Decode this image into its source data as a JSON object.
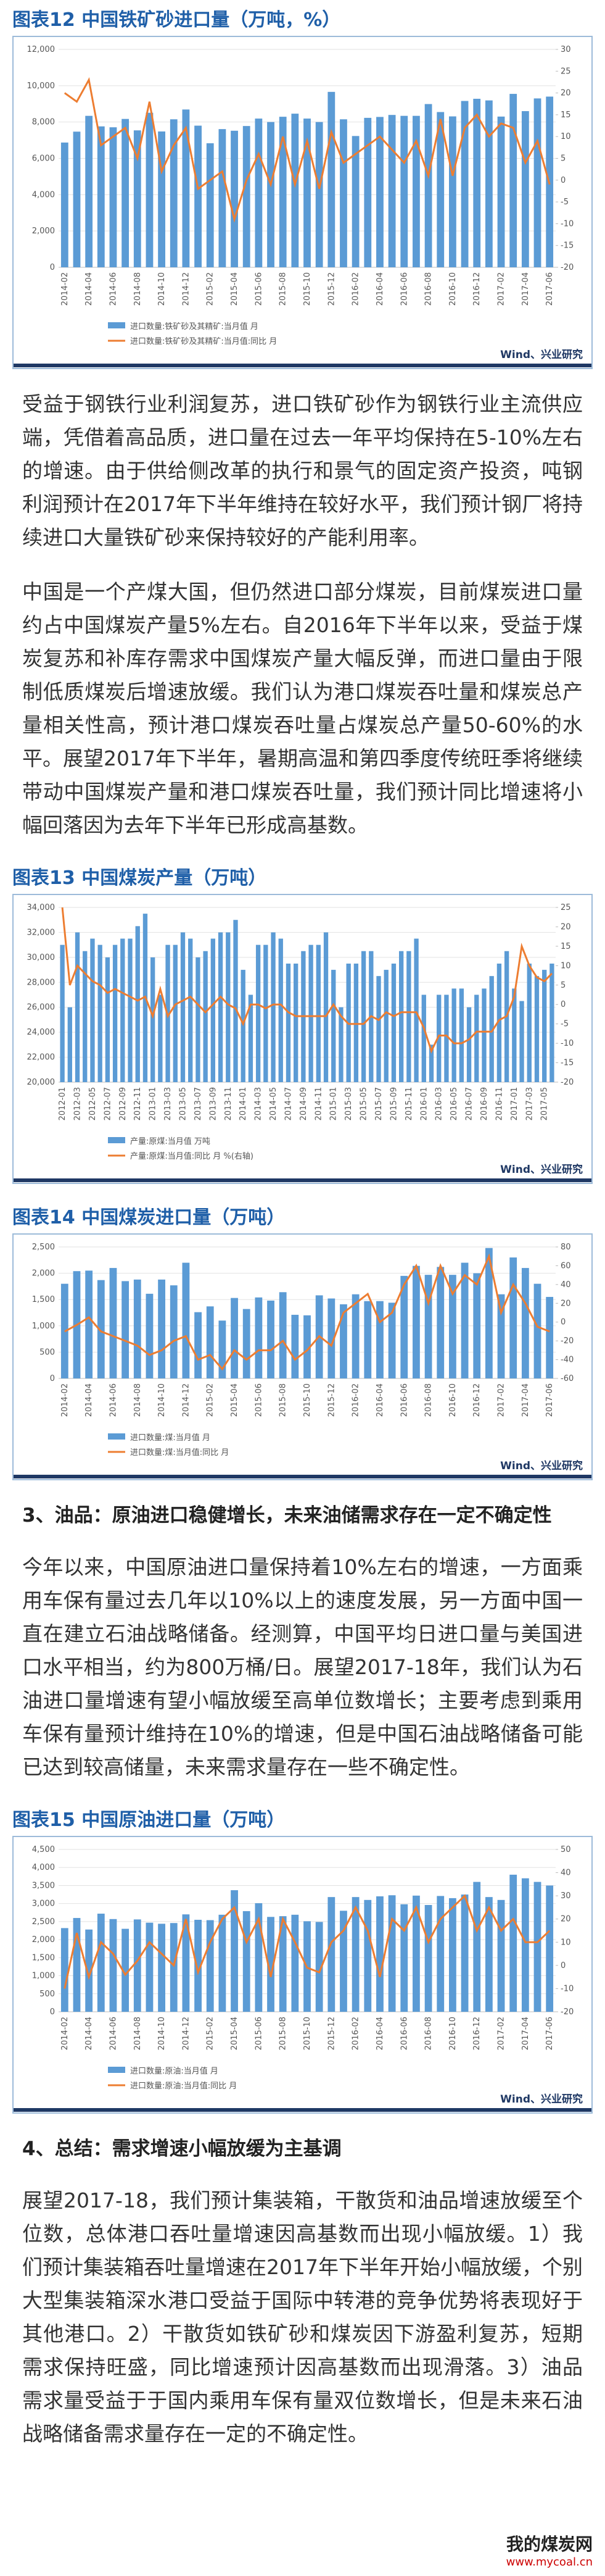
{
  "chart_data": [
    {
      "type": "bar",
      "title": "图表12  中国铁矿砂进口量（万吨，%）",
      "source": "Wind、兴业研究",
      "categories": [
        "2014-02",
        null,
        "2014-04",
        null,
        "2014-06",
        null,
        "2014-08",
        null,
        "2014-10",
        null,
        "2014-12",
        null,
        "2015-02",
        null,
        "2015-04",
        null,
        "2015-06",
        null,
        "2015-08",
        null,
        "2015-10",
        null,
        "2015-12",
        null,
        "2016-02",
        null,
        "2016-04",
        null,
        "2016-06",
        null,
        "2016-08",
        null,
        "2016-10",
        null,
        "2016-12",
        null,
        "2017-02",
        null,
        "2017-04",
        null,
        "2017-06"
      ],
      "series": [
        {
          "name": "进口数量:铁矿砂及其精矿:当月值 月",
          "type": "bar",
          "color": "#5b9bd5",
          "values": [
            6870,
            7470,
            8340,
            7760,
            7710,
            8170,
            7540,
            8510,
            7480,
            8150,
            8690,
            7800,
            6830,
            7610,
            7520,
            7780,
            8190,
            8000,
            8290,
            8460,
            8190,
            8000,
            9660,
            8150,
            7230,
            8230,
            8280,
            8390,
            8340,
            8340,
            8990,
            8550,
            8310,
            9160,
            9280,
            9190,
            8300,
            9550,
            8600,
            9300,
            9400
          ]
        },
        {
          "name": "进口数量:铁矿砂及其精矿:当月值:同比 月",
          "type": "line",
          "axis": "y2",
          "color": "#ed7d31",
          "values": [
            20,
            18,
            23,
            8,
            10,
            12,
            5,
            18,
            2,
            8,
            12,
            -2,
            0,
            2,
            -9,
            0,
            6,
            -1,
            10,
            -1,
            9,
            -2,
            11,
            4,
            6,
            8,
            10,
            7,
            4,
            9,
            1,
            14,
            1,
            12,
            15,
            10,
            13,
            12,
            4,
            9,
            -1
          ]
        }
      ],
      "ylim": [
        0,
        12000
      ],
      "yticks": [
        0,
        {
          "value": 2000,
          "label": "2,000"
        },
        {
          "value": 4000,
          "label": "4,000"
        },
        {
          "value": 6000,
          "label": "6,000"
        },
        {
          "value": 8000,
          "label": "8,000"
        },
        {
          "value": 10000,
          "label": "10,000"
        },
        {
          "value": 12000,
          "label": "12,000"
        }
      ],
      "y2lim": [
        -20,
        30
      ],
      "y2ticks": [
        -20,
        -15,
        -10,
        -5,
        0,
        5,
        10,
        15,
        20,
        25,
        30
      ]
    },
    {
      "type": "bar",
      "title": "图表13  中国煤炭产量（万吨）",
      "source": "Wind、兴业研究",
      "categories": [
        "2012-01",
        null,
        "2012-03",
        null,
        "2012-05",
        null,
        "2012-07",
        null,
        "2012-09",
        null,
        "2012-11",
        null,
        "2013-01",
        null,
        "2013-03",
        null,
        "2013-05",
        null,
        "2013-07",
        null,
        "2013-09",
        null,
        "2013-11",
        null,
        "2014-01",
        null,
        "2014-03",
        null,
        "2014-05",
        null,
        "2014-07",
        null,
        "2014-09",
        null,
        "2014-11",
        null,
        "2015-01",
        null,
        "2015-03",
        null,
        "2015-05",
        null,
        "2015-07",
        null,
        "2015-09",
        null,
        "2015-11",
        null,
        "2016-01",
        null,
        "2016-03",
        null,
        "2016-05",
        null,
        "2016-07",
        null,
        "2016-09",
        null,
        "2016-11",
        null,
        "2017-01",
        null,
        "2017-03",
        null,
        "2017-05",
        null
      ],
      "series": [
        {
          "name": "产量:原煤:当月值 万吨",
          "type": "bar",
          "color": "#5b9bd5",
          "values": [
            31000,
            26000,
            32000,
            30500,
            31500,
            31000,
            30000,
            31000,
            31500,
            31500,
            32500,
            33500,
            30000,
            27000,
            31000,
            31000,
            32000,
            31500,
            30000,
            30500,
            31500,
            32000,
            32000,
            33000,
            29000,
            27000,
            31000,
            31000,
            32000,
            31500,
            29500,
            29500,
            30500,
            31000,
            31000,
            32000,
            29000,
            26000,
            29500,
            29500,
            30500,
            30500,
            28500,
            29000,
            29500,
            30500,
            30500,
            31500,
            27000,
            23000,
            27000,
            27000,
            27500,
            27500,
            26000,
            27000,
            27500,
            28500,
            29500,
            30500,
            27500,
            26500,
            29500,
            28500,
            29000,
            29500
          ]
        },
        {
          "name": "产量:原煤:当月值:同比 月 %(右轴)",
          "type": "line",
          "axis": "y2",
          "color": "#ed7d31",
          "values": [
            25,
            5,
            10,
            8,
            6,
            5,
            3,
            4,
            3,
            2,
            1,
            2,
            -3,
            4,
            -3,
            0,
            1,
            2,
            0,
            -2,
            0,
            2,
            0,
            -1,
            -5,
            0,
            0,
            -1,
            0,
            0,
            -2,
            -3,
            -3,
            -3,
            -3,
            -3,
            0,
            -3,
            -5,
            -5,
            -5,
            -3,
            -4,
            -2,
            -3,
            -2,
            -2,
            -2,
            -6,
            -12,
            -8,
            -8,
            -10,
            -10,
            -9,
            -7,
            -7,
            -7,
            -4,
            -3,
            2,
            15,
            10,
            7,
            6,
            8
          ]
        }
      ],
      "ylim": [
        20000,
        34000
      ],
      "yticks": [
        {
          "value": 20000,
          "label": "20,000"
        },
        {
          "value": 22000,
          "label": "22,000"
        },
        {
          "value": 24000,
          "label": "24,000"
        },
        {
          "value": 26000,
          "label": "26,000"
        },
        {
          "value": 28000,
          "label": "28,000"
        },
        {
          "value": 30000,
          "label": "30,000"
        },
        {
          "value": 32000,
          "label": "32,000"
        },
        {
          "value": 34000,
          "label": "34,000"
        }
      ],
      "y2lim": [
        -20,
        25
      ],
      "y2ticks": [
        -20,
        -15,
        -10,
        -5,
        0,
        5,
        10,
        15,
        20,
        25
      ]
    },
    {
      "type": "bar",
      "title": "图表14  中国煤炭进口量（万吨）",
      "source": "Wind、兴业研究",
      "categories": [
        "2014-02",
        null,
        "2014-04",
        null,
        "2014-06",
        null,
        "2014-08",
        null,
        "2014-10",
        null,
        "2014-12",
        null,
        "2015-02",
        null,
        "2015-04",
        null,
        "2015-06",
        null,
        "2015-08",
        null,
        "2015-10",
        null,
        "2015-12",
        null,
        "2016-02",
        null,
        "2016-04",
        null,
        "2016-06",
        null,
        "2016-08",
        null,
        "2016-10",
        null,
        "2016-12",
        null,
        "2017-02",
        null,
        "2017-04",
        null,
        "2017-06"
      ],
      "series": [
        {
          "name": "进口数量:煤:当月值 月",
          "type": "bar",
          "color": "#5b9bd5",
          "values": [
            1800,
            2040,
            2050,
            1870,
            2100,
            1850,
            1880,
            1610,
            1880,
            1770,
            2200,
            1260,
            1370,
            1100,
            1530,
            1320,
            1540,
            1480,
            1640,
            1210,
            1200,
            1580,
            1520,
            1410,
            1600,
            1470,
            1470,
            1440,
            1950,
            2140,
            1970,
            2120,
            1970,
            2200,
            2000,
            2480,
            1600,
            2300,
            2100,
            1800,
            1550
          ]
        },
        {
          "name": "进口数量:煤:当月值:同比 月",
          "type": "line",
          "axis": "y2",
          "color": "#ed7d31",
          "values": [
            -10,
            -3,
            5,
            -10,
            -15,
            -20,
            -25,
            -35,
            -30,
            -20,
            -15,
            -40,
            -35,
            -50,
            -30,
            -40,
            -30,
            -30,
            -20,
            -40,
            -30,
            -15,
            -25,
            10,
            20,
            30,
            0,
            10,
            40,
            60,
            20,
            60,
            30,
            50,
            40,
            70,
            10,
            40,
            20,
            -5,
            -10
          ]
        }
      ],
      "ylim": [
        0,
        2500
      ],
      "yticks": [
        0,
        500,
        {
          "value": 1000,
          "label": "1,000"
        },
        {
          "value": 1500,
          "label": "1,500"
        },
        {
          "value": 2000,
          "label": "2,000"
        },
        {
          "value": 2500,
          "label": "2,500"
        }
      ],
      "y2lim": [
        -60,
        80
      ],
      "y2ticks": [
        -60,
        -40,
        -20,
        0,
        20,
        40,
        60,
        80
      ]
    },
    {
      "type": "bar",
      "title": "图表15  中国原油进口量（万吨）",
      "source": "Wind、兴业研究",
      "categories": [
        "2014-02",
        null,
        "2014-04",
        null,
        "2014-06",
        null,
        "2014-08",
        null,
        "2014-10",
        null,
        "2014-12",
        null,
        "2015-02",
        null,
        "2015-04",
        null,
        "2015-06",
        null,
        "2015-08",
        null,
        "2015-10",
        null,
        "2015-12",
        null,
        "2016-02",
        null,
        "2016-04",
        null,
        "2016-06",
        null,
        "2016-08",
        null,
        "2016-10",
        null,
        "2016-12",
        null,
        "2017-02",
        null,
        "2017-04",
        null,
        "2017-06"
      ],
      "series": [
        {
          "name": "进口数量:原油:当月值 月",
          "type": "bar",
          "color": "#5b9bd5",
          "values": [
            2320,
            2600,
            2280,
            2720,
            2570,
            2300,
            2560,
            2470,
            2440,
            2460,
            2700,
            2550,
            2540,
            2690,
            3370,
            2790,
            3010,
            2630,
            2650,
            2690,
            2510,
            2490,
            3180,
            2800,
            3180,
            3100,
            3200,
            3230,
            2980,
            3220,
            2960,
            3210,
            3150,
            3250,
            3600,
            3180,
            3100,
            3800,
            3700,
            3600,
            3500
          ]
        },
        {
          "name": "进口数量:原油:当月值:同比 月",
          "type": "line",
          "axis": "y2",
          "color": "#ed7d31",
          "values": [
            -10,
            14,
            -5,
            10,
            5,
            -4,
            2,
            10,
            5,
            0,
            20,
            -3,
            10,
            20,
            25,
            10,
            20,
            -5,
            20,
            10,
            -1,
            -3,
            10,
            15,
            25,
            15,
            -5,
            20,
            15,
            25,
            10,
            20,
            25,
            30,
            15,
            25,
            15,
            20,
            10,
            10,
            15
          ]
        }
      ],
      "ylim": [
        0,
        4500
      ],
      "yticks": [
        0,
        500,
        {
          "value": 1000,
          "label": "1,000"
        },
        {
          "value": 1500,
          "label": "1,500"
        },
        {
          "value": 2000,
          "label": "2,000"
        },
        {
          "value": 2500,
          "label": "2,500"
        },
        {
          "value": 3000,
          "label": "3,000"
        },
        {
          "value": 3500,
          "label": "3,500"
        },
        {
          "value": 4000,
          "label": "4,000"
        },
        {
          "value": 4500,
          "label": "4,500"
        }
      ],
      "y2lim": [
        -20,
        50
      ],
      "y2ticks": [
        -20,
        -10,
        0,
        10,
        20,
        30,
        40,
        50
      ]
    }
  ],
  "paragraphs": [
    "受益于钢铁行业利润复苏，进口铁矿砂作为钢铁行业主流供应端，凭借着高品质，进口量在过去一年平均保持在5-10%左右的增速。由于供给侧改革的执行和景气的固定资产投资，吨钢利润预计在2017年下半年维持在较好水平，我们预计钢厂将持续进口大量铁矿砂来保持较好的产能利用率。",
    "中国是一个产煤大国，但仍然进口部分煤炭，目前煤炭进口量约占中国煤炭产量5%左右。自2016年下半年以来，受益于煤炭复苏和补库存需求中国煤炭产量大幅反弹，而进口量由于限制低质煤炭后增速放缓。我们认为港口煤炭吞吐量和煤炭总产量相关性高，预计港口煤炭吞吐量占煤炭总产量50-60%的水平。展望2017年下半年，暑期高温和第四季度传统旺季将继续带动中国煤炭产量和港口煤炭吞吐量，我们预计同比增速将小幅回落因为去年下半年已形成高基数。",
    "今年以来，中国原油进口量保持着10%左右的增速，一方面乘用车保有量过去几年以10%以上的速度发展，另一方面中国一直在建立石油战略储备。经测算，中国平均日进口量与美国进口水平相当，约为800万桶/日。展望2017-18年，我们认为石油进口量增速有望小幅放缓至高单位数增长；主要考虑到乘用车保有量预计维持在10%的增速，但是中国石油战略储备可能已达到较高储量，未来需求量存在一些不确定性。",
    "展望2017-18，我们预计集装箱，干散货和油品增速放缓至个位数，总体港口吞吐量增速因高基数而出现小幅放缓。1）我们预计集装箱吞吐量增速在2017年下半年开始小幅放缓，个别大型集装箱深水港口受益于国际中转港的竞争优势将表现好于其他港口。2）干散货如铁矿砂和煤炭因下游盈利复苏，短期需求保持旺盛，同比增速预计因高基数而出现滑落。3）油品需求量受益于于国内乘用车保有量双位数增长，但是未来石油战略储备需求量存在一定的不确定性。"
  ],
  "headings": [
    "3、油品：原油进口稳健增长，未来油储需求存在一定不确定性",
    "4、总结：需求增速小幅放缓为主基调"
  ],
  "watermark": {
    "name": "我的煤炭网",
    "url": "www.mycoal.cn"
  }
}
